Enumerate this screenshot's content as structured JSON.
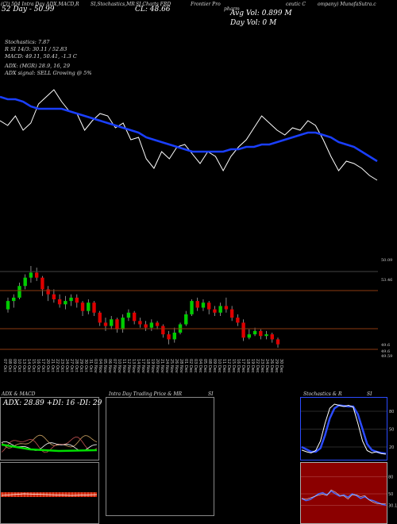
{
  "header": {
    "line1": "(Cl) 504 Intra Day ADX,MACD,R",
    "line1b": "SI,Stochastics,MR",
    "line1c": "SI Charts FRD",
    "line1d": "Frontier Pro",
    "line1e": "pharm",
    "line1f": "ceutic C",
    "line1g": "ompany) MunafaSutra.c",
    "day": "52 Day - 50.99",
    "cl": "CL: 48.66",
    "avg_vol": "Avg Vol: 0.899 M",
    "day_vol": "Day Vol: 0   M"
  },
  "indicators": {
    "stoch": "Stochastics: 7.87",
    "rsi": "R                    SI 14/3: 30.11 / 52.83",
    "macd": "MACD: 49.11, 50.41, -1.3 C",
    "adx": "ADX:                     (MGR) 28.9, 16, 29",
    "adx_signal": "ADX  signal: SELL Growing @ 5%"
  },
  "price_levels": [
    "50.09",
    "53.46",
    "49.6",
    "49.6",
    "49.59"
  ],
  "dates": [
    "07 Oct",
    "08 Oct",
    "09 Oct",
    "10 Oct",
    "13 Oct",
    "14 Oct",
    "15 Oct",
    "16 Oct",
    "17 Oct",
    "20 Oct",
    "21 Oct",
    "22 Oct",
    "23 Oct",
    "24 Oct",
    "27 Oct",
    "28 Oct",
    "29 Oct",
    "30 Oct",
    "31 Oct",
    "03 Nov",
    "04 Nov",
    "05 Nov",
    "06 Nov",
    "07 Nov",
    "10 Nov",
    "11 Nov",
    "12 Nov",
    "13 Nov",
    "14 Nov",
    "17 Nov",
    "18 Nov",
    "19 Nov",
    "20 Nov",
    "21 Nov",
    "24 Nov",
    "25 Nov",
    "26 Nov",
    "28 Nov",
    "01 Dec",
    "02 Dec",
    "03 Dec",
    "04 Dec",
    "05 Dec",
    "08 Dec",
    "09 Dec",
    "10 Dec",
    "11 Dec",
    "12 Dec",
    "15 Dec",
    "16 Dec",
    "17 Dec",
    "18 Dec",
    "19 Dec",
    "22 Dec",
    "23 Dec",
    "24 Dec",
    "26 Dec",
    "29 Dec",
    "30 Dec"
  ],
  "panels": {
    "adx_title": "ADX  & MACD",
    "adx_values": "ADX: 28.89 +DI: 16  -DI: 29",
    "mrsi_title": "Intra  Day Trading Price  & MR",
    "mrsi_title2": "SI",
    "stoch_title": "Stochastics & R",
    "stoch_title2": "SI",
    "stoch_ticks": [
      "80",
      "50",
      "20"
    ],
    "rsi_ticks": [
      "80",
      "50",
      "30.11"
    ]
  },
  "colors": {
    "up": "#00cc00",
    "down": "#dd0000",
    "ma": "#1a3fff",
    "price_line": "#ffffff",
    "rsi_bg": "#8b0000"
  },
  "chart_data": {
    "type": "line",
    "series": [
      {
        "values": [
          51.6,
          51.4,
          51.8,
          51.2,
          51.5,
          52.3,
          52.6,
          52.9,
          52.4,
          52.0,
          51.9,
          51.2,
          51.6,
          51.9,
          51.8,
          51.3,
          51.5,
          50.8,
          50.9,
          50.0,
          49.6,
          50.3,
          50.0,
          50.5,
          50.6,
          50.2,
          49.8,
          50.3,
          50.1,
          49.5,
          50.1,
          50.5,
          50.8,
          51.3,
          51.8,
          51.5,
          51.2,
          51.0,
          51.3,
          51.2,
          51.6,
          51.4,
          50.8,
          50.1,
          49.5,
          49.9,
          49.8,
          49.6,
          49.3,
          49.1
        ]
      },
      {
        "values": [
          52.6,
          52.5,
          52.5,
          52.4,
          52.2,
          52.1,
          52.1,
          52.1,
          52.1,
          52.0,
          51.9,
          51.8,
          51.7,
          51.6,
          51.5,
          51.4,
          51.3,
          51.2,
          51.1,
          50.9,
          50.8,
          50.7,
          50.6,
          50.5,
          50.4,
          50.3,
          50.3,
          50.3,
          50.3,
          50.3,
          50.4,
          50.4,
          50.5,
          50.5,
          50.6,
          50.6,
          50.7,
          50.8,
          50.9,
          51.0,
          51.1,
          51.1,
          51.0,
          50.9,
          50.7,
          50.6,
          50.5,
          50.3,
          50.1,
          49.9
        ]
      }
    ],
    "candles": [
      {
        "o": 51.4,
        "c": 51.9,
        "h": 52.1,
        "l": 51.2
      },
      {
        "o": 51.9,
        "c": 52.1,
        "h": 52.3,
        "l": 51.5
      },
      {
        "o": 52.1,
        "c": 52.8,
        "h": 53.0,
        "l": 52.0
      },
      {
        "o": 52.8,
        "c": 53.3,
        "h": 53.5,
        "l": 52.6
      },
      {
        "o": 53.3,
        "c": 53.6,
        "h": 54.0,
        "l": 53.0
      },
      {
        "o": 53.6,
        "c": 53.3,
        "h": 53.9,
        "l": 53.1
      },
      {
        "o": 53.3,
        "c": 52.6,
        "h": 53.4,
        "l": 52.2
      },
      {
        "o": 52.6,
        "c": 52.3,
        "h": 52.8,
        "l": 51.9
      },
      {
        "o": 52.3,
        "c": 52.0,
        "h": 52.6,
        "l": 51.8
      },
      {
        "o": 52.0,
        "c": 51.7,
        "h": 52.3,
        "l": 51.5
      },
      {
        "o": 51.7,
        "c": 51.9,
        "h": 52.2,
        "l": 51.4
      },
      {
        "o": 51.9,
        "c": 52.1,
        "h": 52.3,
        "l": 51.6
      },
      {
        "o": 52.1,
        "c": 51.8,
        "h": 52.3,
        "l": 51.5
      },
      {
        "o": 51.8,
        "c": 51.3,
        "h": 51.9,
        "l": 51.0
      },
      {
        "o": 51.3,
        "c": 51.8,
        "h": 52.0,
        "l": 51.1
      },
      {
        "o": 51.8,
        "c": 51.2,
        "h": 51.9,
        "l": 51.0
      },
      {
        "o": 51.2,
        "c": 50.6,
        "h": 51.3,
        "l": 50.4
      },
      {
        "o": 50.6,
        "c": 50.4,
        "h": 50.9,
        "l": 50.1
      },
      {
        "o": 50.4,
        "c": 50.8,
        "h": 51.0,
        "l": 50.2
      },
      {
        "o": 50.8,
        "c": 50.2,
        "h": 50.9,
        "l": 50.0
      },
      {
        "o": 50.2,
        "c": 50.9,
        "h": 51.1,
        "l": 50.0
      },
      {
        "o": 50.9,
        "c": 51.2,
        "h": 51.4,
        "l": 50.7
      },
      {
        "o": 51.2,
        "c": 50.7,
        "h": 51.3,
        "l": 50.5
      },
      {
        "o": 50.7,
        "c": 50.5,
        "h": 50.9,
        "l": 50.3
      },
      {
        "o": 50.5,
        "c": 50.3,
        "h": 50.7,
        "l": 50.1
      },
      {
        "o": 50.3,
        "c": 50.6,
        "h": 50.8,
        "l": 50.1
      },
      {
        "o": 50.6,
        "c": 50.4,
        "h": 50.7,
        "l": 50.2
      },
      {
        "o": 50.4,
        "c": 49.9,
        "h": 50.5,
        "l": 49.7
      },
      {
        "o": 49.9,
        "c": 49.6,
        "h": 50.1,
        "l": 49.3
      },
      {
        "o": 49.6,
        "c": 50.0,
        "h": 50.3,
        "l": 49.4
      },
      {
        "o": 50.0,
        "c": 50.5,
        "h": 50.6,
        "l": 49.9
      },
      {
        "o": 50.5,
        "c": 51.1,
        "h": 51.3,
        "l": 50.4
      },
      {
        "o": 51.1,
        "c": 51.9,
        "h": 52.0,
        "l": 51.0
      },
      {
        "o": 51.9,
        "c": 51.5,
        "h": 52.1,
        "l": 51.3
      },
      {
        "o": 51.5,
        "c": 51.8,
        "h": 52.0,
        "l": 51.3
      },
      {
        "o": 51.8,
        "c": 51.4,
        "h": 51.9,
        "l": 51.1
      },
      {
        "o": 51.4,
        "c": 51.2,
        "h": 51.6,
        "l": 51.0
      },
      {
        "o": 51.2,
        "c": 51.6,
        "h": 51.8,
        "l": 51.0
      },
      {
        "o": 51.6,
        "c": 51.4,
        "h": 52.1,
        "l": 51.2
      },
      {
        "o": 51.4,
        "c": 50.9,
        "h": 51.6,
        "l": 50.7
      },
      {
        "o": 50.9,
        "c": 50.6,
        "h": 51.1,
        "l": 50.4
      },
      {
        "o": 50.6,
        "c": 49.7,
        "h": 50.8,
        "l": 49.5
      },
      {
        "o": 49.7,
        "c": 49.9,
        "h": 50.2,
        "l": 49.6
      },
      {
        "o": 49.9,
        "c": 50.1,
        "h": 50.3,
        "l": 49.8
      },
      {
        "o": 50.1,
        "c": 49.8,
        "h": 50.2,
        "l": 49.6
      },
      {
        "o": 49.8,
        "c": 49.9,
        "h": 50.1,
        "l": 49.6
      },
      {
        "o": 49.9,
        "c": 49.6,
        "h": 50.0,
        "l": 49.4
      },
      {
        "o": 49.6,
        "c": 49.3,
        "h": 49.7,
        "l": 49.1
      }
    ]
  }
}
